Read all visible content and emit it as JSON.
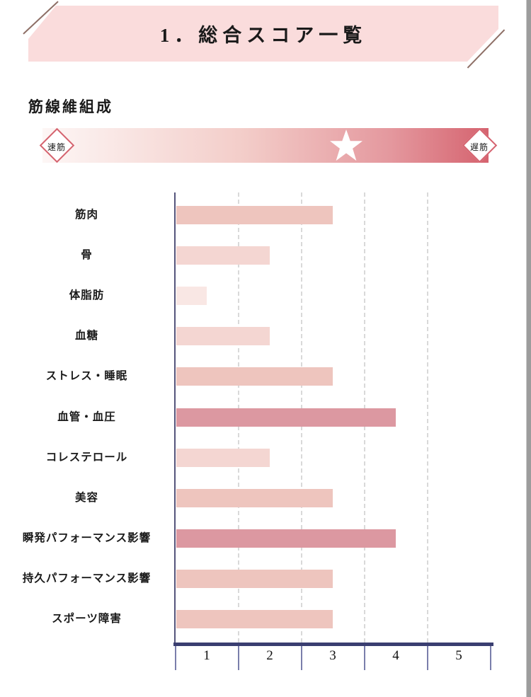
{
  "header": {
    "title": "1．総合スコア一覧"
  },
  "fiber": {
    "heading": "筋線維組成",
    "left_diamond": "速筋",
    "right_diamond": "遅筋",
    "marker_position_pct": 68.1,
    "gradient_start": "#fdf6f5",
    "gradient_end": "#d5636f",
    "marker_color": "#ffffff"
  },
  "chart_data": {
    "type": "bar",
    "orientation": "horizontal",
    "categories": [
      "筋肉",
      "骨",
      "体脂肪",
      "血糖",
      "ストレス・睡眠",
      "血管・血圧",
      "コレステロール",
      "美容",
      "瞬発パフォーマンス影響",
      "持久パフォーマンス影響",
      "スポーツ障害"
    ],
    "values": [
      3,
      2,
      1,
      2,
      3,
      4,
      2,
      3,
      4,
      3,
      3
    ],
    "xlim": [
      0,
      5
    ],
    "x_ticks": [
      "1",
      "2",
      "3",
      "4",
      "5"
    ],
    "grid": "vertical-dashed",
    "legend": "none",
    "score_colors": {
      "1": "#f9e7e4",
      "2": "#f4d6d2",
      "3": "#eec5be",
      "4": "#dc98a1"
    },
    "axis_color": "#3a3e70"
  }
}
